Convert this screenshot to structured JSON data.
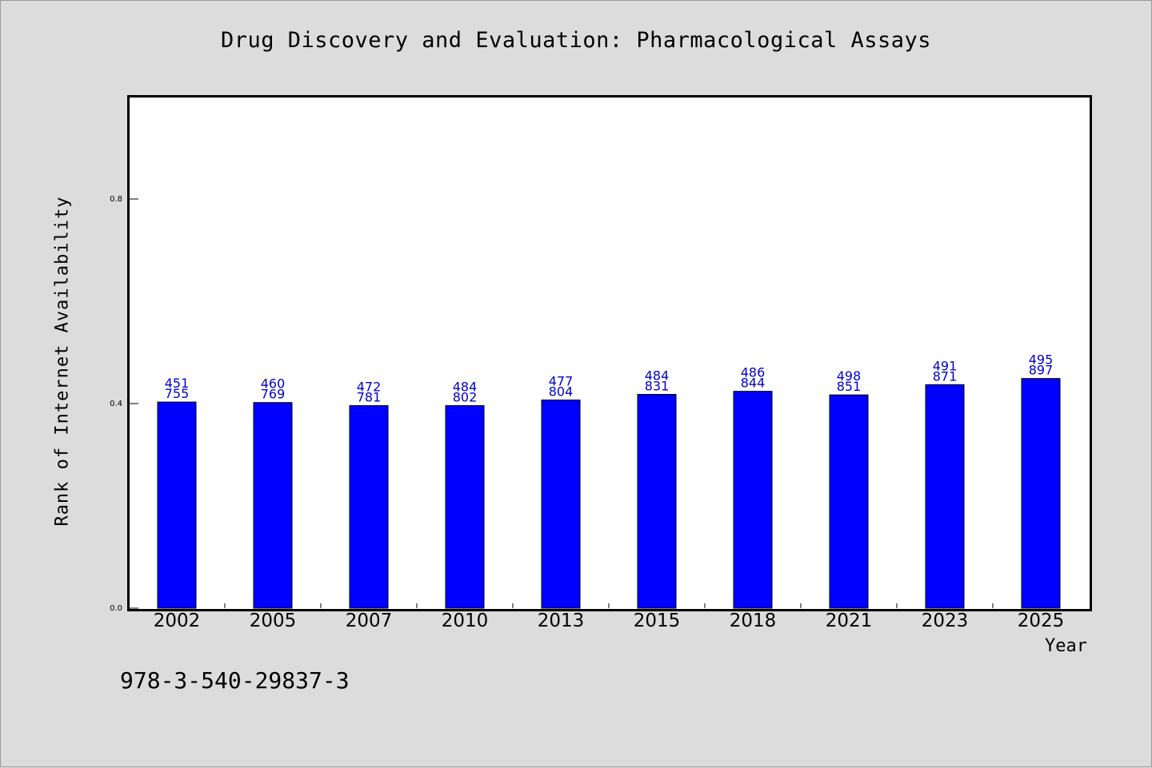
{
  "chart_data": {
    "type": "bar",
    "title": "Drug Discovery and Evaluation: Pharmacological Assays",
    "xlabel": "Year",
    "ylabel": "Rank of Internet Availability",
    "categories": [
      "2002",
      "2005",
      "2007",
      "2010",
      "2013",
      "2015",
      "2018",
      "2021",
      "2023",
      "2025"
    ],
    "values": [
      0.403,
      0.402,
      0.396,
      0.396,
      0.407,
      0.418,
      0.424,
      0.417,
      0.437,
      0.449
    ],
    "label_top": [
      "451",
      "460",
      "472",
      "484",
      "477",
      "484",
      "486",
      "498",
      "491",
      "495"
    ],
    "label_bottom": [
      "755",
      "769",
      "781",
      "802",
      "804",
      "831",
      "844",
      "851",
      "871",
      "897"
    ],
    "ylim": [
      0,
      1.0
    ],
    "yticks": [
      0.0,
      0.4,
      0.8
    ],
    "ytick_labels": [
      "0.0",
      "0.4",
      "0.8"
    ],
    "grid": false,
    "bar_color": "#0000ff",
    "data_label_color": "#0000cc"
  },
  "footer": {
    "isbn": "978-3-540-29837-3"
  }
}
